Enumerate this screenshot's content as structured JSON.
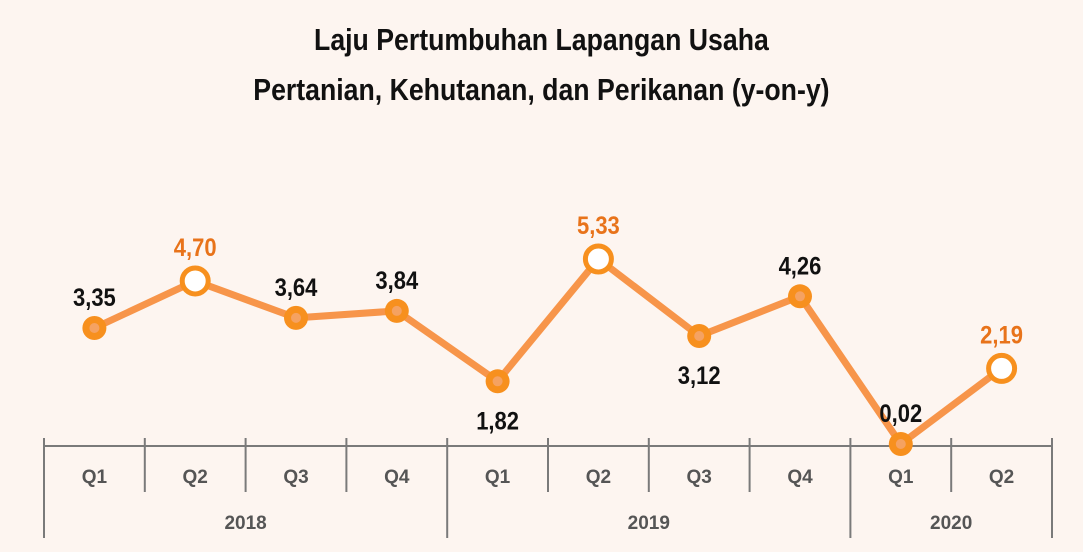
{
  "chart_data": {
    "type": "line",
    "title": [
      "Laju Pertumbuhan Lapangan Usaha",
      "Pertanian, Kehutanan, dan Perikanan (y-on-y)"
    ],
    "categories": [
      "Q1",
      "Q2",
      "Q3",
      "Q4",
      "Q1",
      "Q2",
      "Q3",
      "Q4",
      "Q1",
      "Q2"
    ],
    "groups": [
      {
        "label": "2018",
        "span": 4
      },
      {
        "label": "2019",
        "span": 4
      },
      {
        "label": "2020",
        "span": 2
      }
    ],
    "values": [
      3.35,
      4.7,
      3.64,
      3.84,
      1.82,
      5.33,
      3.12,
      4.26,
      0.02,
      2.19
    ],
    "data_labels": [
      "3,35",
      "4,70",
      "3,64",
      "3,84",
      "1,82",
      "5,33",
      "3,12",
      "4,26",
      "0,02",
      "2,19"
    ],
    "highlighted": [
      false,
      true,
      false,
      false,
      false,
      true,
      false,
      false,
      false,
      true
    ],
    "label_position": [
      "above",
      "above",
      "above",
      "above",
      "below",
      "above",
      "below",
      "above",
      "above",
      "above"
    ],
    "xlabel": "",
    "ylabel": "",
    "grid": false,
    "colors": {
      "line": "#f7954a",
      "marker": "#f7901e",
      "marker_center": "#f5a262",
      "highlight_text": "#e8731a",
      "text": "#111111",
      "axis": "#7a7a7a",
      "background": "#fdf5f0"
    }
  }
}
